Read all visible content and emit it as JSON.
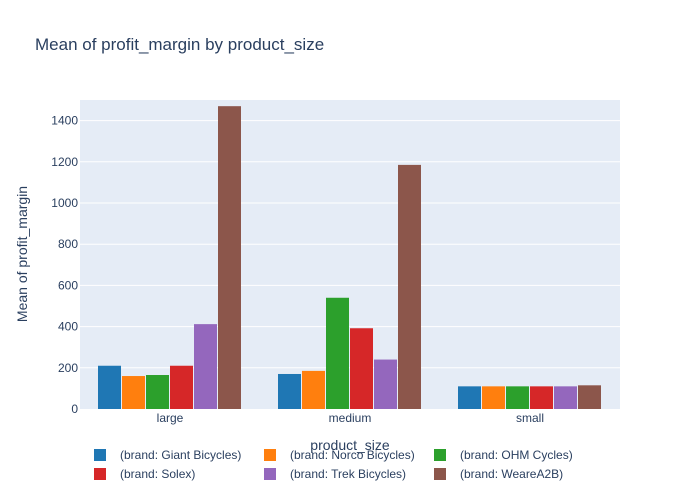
{
  "chart_data": {
    "type": "bar",
    "title": "Mean of profit_margin by product_size",
    "xlabel": "product_size",
    "ylabel": "Mean of profit_margin",
    "categories": [
      "large",
      "medium",
      "small"
    ],
    "ylim": [
      0,
      1500
    ],
    "yticks": [
      0,
      200,
      400,
      600,
      800,
      1000,
      1200,
      1400
    ],
    "grid": true,
    "legend_position": "bottom",
    "series": [
      {
        "name": "(brand: Giant Bicycles)",
        "color": "#1f77b4",
        "values": [
          210,
          170,
          110
        ]
      },
      {
        "name": "(brand: Norco Bicycles)",
        "color": "#ff7f0e",
        "values": [
          160,
          185,
          110
        ]
      },
      {
        "name": "(brand: OHM Cycles)",
        "color": "#2ca02c",
        "values": [
          165,
          540,
          110
        ]
      },
      {
        "name": "(brand: Solex)",
        "color": "#d62728",
        "values": [
          210,
          392,
          110
        ]
      },
      {
        "name": "(brand: Trek Bicycles)",
        "color": "#9467bd",
        "values": [
          412,
          240,
          110
        ]
      },
      {
        "name": "(brand: WeareA2B)",
        "color": "#8c564b",
        "values": [
          1470,
          1185,
          115
        ]
      }
    ]
  }
}
